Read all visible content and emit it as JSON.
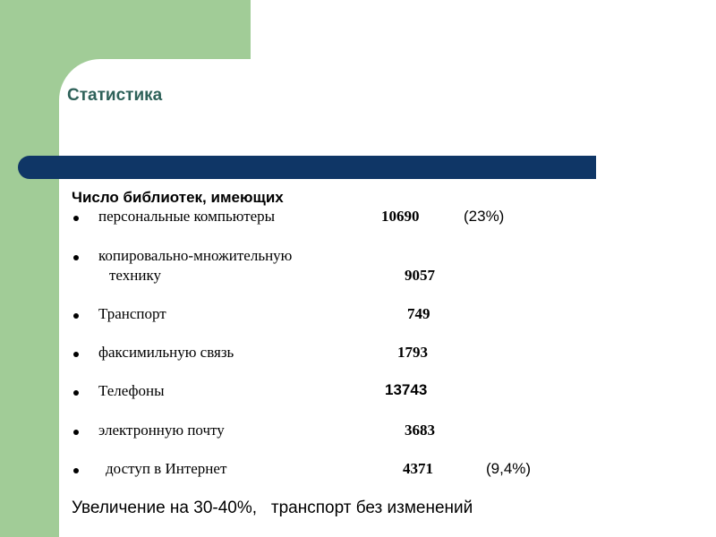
{
  "slide": {
    "title": "Статистика",
    "heading": "Число библиотек, имеющих",
    "items": [
      {
        "label": "персональные компьютеры",
        "value": "10690",
        "percent": "(23%)"
      },
      {
        "label": "копировально-множительную",
        "label2": "технику",
        "value": "9057"
      },
      {
        "label": "Транспорт",
        "value": "749"
      },
      {
        "label": "факсимильную связь",
        "value": "1793"
      },
      {
        "label": "Телефоны",
        "value": "13743"
      },
      {
        "label": "электронную почту",
        "value": "3683"
      },
      {
        "label": "доступ в Интернет",
        "value": "4371",
        "percent": "(9,4%)"
      }
    ],
    "footer": "Увеличение на 30-40%,   транспорт без изменений"
  },
  "colors": {
    "accent_green": "#a1cc97",
    "bar_navy": "#0f3666",
    "title_teal": "#2e6159"
  }
}
